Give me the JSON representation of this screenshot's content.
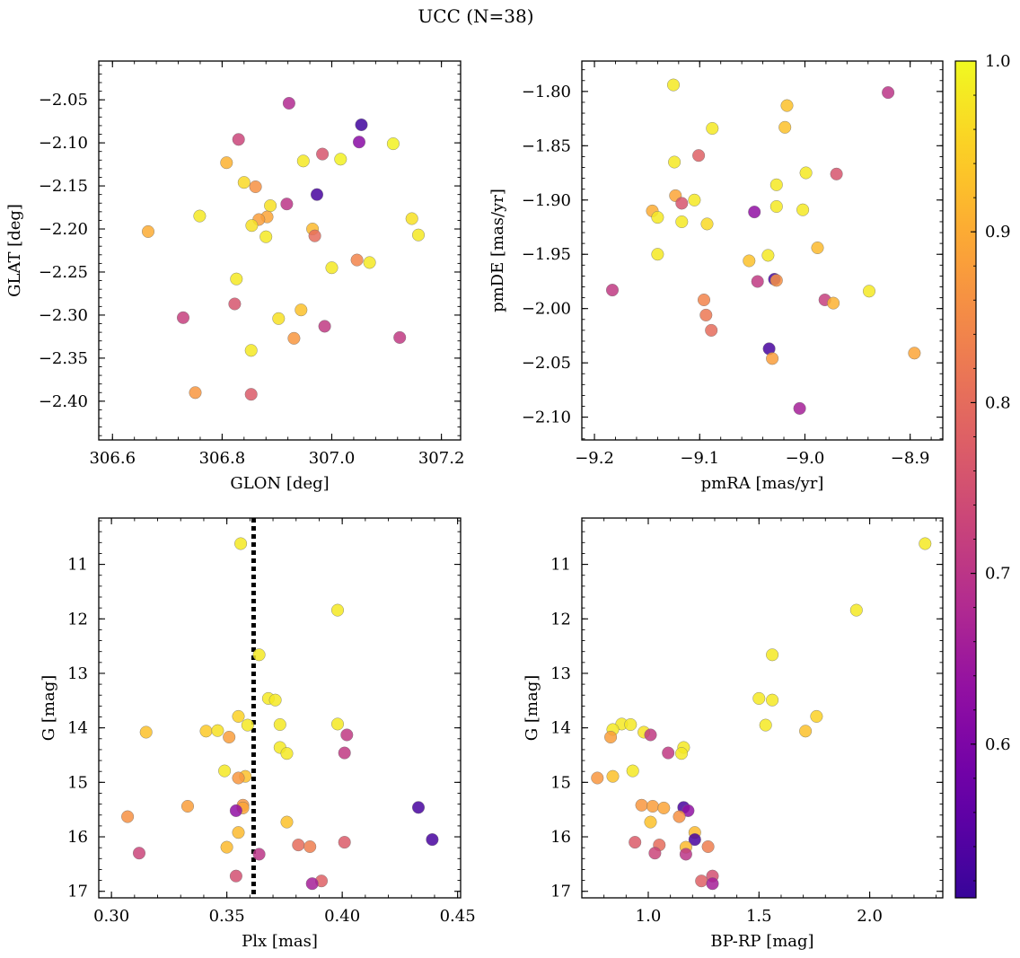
{
  "figure_title": "UCC (N=38)",
  "colors": {
    "axes": "#000000",
    "marker_edge": "#6e6e6e",
    "membership_line": "#000000"
  },
  "colorbar": {
    "cmap": "plasma",
    "range": [
      0.51,
      1.0
    ],
    "ticks": [
      0.6,
      0.7,
      0.8,
      0.9,
      1.0
    ],
    "tick_labels": [
      "0.6",
      "0.7",
      "0.8",
      "0.9",
      "1.0"
    ]
  },
  "chart_data": [
    {
      "type": "scatter",
      "panel": "top-left",
      "xlabel": "GLON [deg]",
      "ylabel": "GLAT [deg]",
      "xlim": [
        306.575,
        307.235
      ],
      "ylim": [
        -2.445,
        -2.005
      ],
      "y_inverted": false,
      "xticks": [
        306.6,
        306.8,
        307.0,
        307.2
      ],
      "xtick_labels": [
        "306.6",
        "306.8",
        "307.0",
        "307.2"
      ],
      "yticks": [
        -2.05,
        -2.1,
        -2.15,
        -2.2,
        -2.25,
        -2.3,
        -2.35,
        -2.4
      ],
      "ytick_labels": [
        "−2.05",
        "−2.10",
        "−2.15",
        "−2.20",
        "−2.25",
        "−2.30",
        "−2.35",
        "−2.40"
      ],
      "points": [
        {
          "x": 306.922,
          "y": -2.054,
          "c": 0.68
        },
        {
          "x": 307.054,
          "y": -2.079,
          "c": 0.52
        },
        {
          "x": 306.83,
          "y": -2.096,
          "c": 0.73
        },
        {
          "x": 307.05,
          "y": -2.099,
          "c": 0.62
        },
        {
          "x": 307.112,
          "y": -2.101,
          "c": 0.99
        },
        {
          "x": 306.983,
          "y": -2.113,
          "c": 0.76
        },
        {
          "x": 307.016,
          "y": -2.119,
          "c": 0.99
        },
        {
          "x": 306.948,
          "y": -2.121,
          "c": 0.98
        },
        {
          "x": 306.808,
          "y": -2.123,
          "c": 0.91
        },
        {
          "x": 306.84,
          "y": -2.146,
          "c": 0.96
        },
        {
          "x": 306.861,
          "y": -2.151,
          "c": 0.86
        },
        {
          "x": 306.973,
          "y": -2.16,
          "c": 0.53
        },
        {
          "x": 306.918,
          "y": -2.171,
          "c": 0.7
        },
        {
          "x": 306.888,
          "y": -2.173,
          "c": 0.97
        },
        {
          "x": 306.882,
          "y": -2.186,
          "c": 0.89
        },
        {
          "x": 306.867,
          "y": -2.189,
          "c": 0.88
        },
        {
          "x": 306.759,
          "y": -2.185,
          "c": 0.98
        },
        {
          "x": 307.146,
          "y": -2.188,
          "c": 0.97
        },
        {
          "x": 306.854,
          "y": -2.196,
          "c": 0.97
        },
        {
          "x": 306.965,
          "y": -2.2,
          "c": 0.92
        },
        {
          "x": 306.665,
          "y": -2.203,
          "c": 0.9
        },
        {
          "x": 307.158,
          "y": -2.207,
          "c": 0.98
        },
        {
          "x": 306.88,
          "y": -2.209,
          "c": 0.98
        },
        {
          "x": 306.969,
          "y": -2.208,
          "c": 0.8
        },
        {
          "x": 307.046,
          "y": -2.236,
          "c": 0.84
        },
        {
          "x": 307.069,
          "y": -2.239,
          "c": 0.98
        },
        {
          "x": 307.0,
          "y": -2.245,
          "c": 0.98
        },
        {
          "x": 306.826,
          "y": -2.258,
          "c": 0.98
        },
        {
          "x": 306.823,
          "y": -2.287,
          "c": 0.76
        },
        {
          "x": 306.944,
          "y": -2.294,
          "c": 0.93
        },
        {
          "x": 306.729,
          "y": -2.303,
          "c": 0.72
        },
        {
          "x": 306.903,
          "y": -2.304,
          "c": 0.97
        },
        {
          "x": 306.987,
          "y": -2.313,
          "c": 0.71
        },
        {
          "x": 306.931,
          "y": -2.327,
          "c": 0.87
        },
        {
          "x": 307.124,
          "y": -2.326,
          "c": 0.71
        },
        {
          "x": 306.853,
          "y": -2.341,
          "c": 0.98
        },
        {
          "x": 306.751,
          "y": -2.39,
          "c": 0.87
        },
        {
          "x": 306.853,
          "y": -2.392,
          "c": 0.77
        }
      ]
    },
    {
      "type": "scatter",
      "panel": "top-right",
      "xlabel": "pmRA [mas/yr]",
      "ylabel": "pmDE [mas/yr]",
      "xlim": [
        -9.212,
        -8.869
      ],
      "ylim": [
        -2.121,
        -1.772
      ],
      "y_inverted": false,
      "xticks": [
        -9.2,
        -9.1,
        -9.0,
        -8.9
      ],
      "xtick_labels": [
        "−9.2",
        "−9.1",
        "−9.0",
        "−8.9"
      ],
      "yticks": [
        -1.8,
        -1.85,
        -1.9,
        -1.95,
        -2.0,
        -2.05,
        -2.1
      ],
      "ytick_labels": [
        "−1.80",
        "−1.85",
        "−1.90",
        "−1.95",
        "−2.00",
        "−2.05",
        "−2.10"
      ],
      "points": [
        {
          "x": -9.125,
          "y": -1.794,
          "c": 0.98
        },
        {
          "x": -8.921,
          "y": -1.801,
          "c": 0.7
        },
        {
          "x": -9.017,
          "y": -1.813,
          "c": 0.93
        },
        {
          "x": -9.019,
          "y": -1.833,
          "c": 0.93
        },
        {
          "x": -9.088,
          "y": -1.834,
          "c": 0.98
        },
        {
          "x": -9.101,
          "y": -1.859,
          "c": 0.78
        },
        {
          "x": -9.124,
          "y": -1.865,
          "c": 0.98
        },
        {
          "x": -8.999,
          "y": -1.875,
          "c": 0.98
        },
        {
          "x": -8.97,
          "y": -1.876,
          "c": 0.76
        },
        {
          "x": -9.027,
          "y": -1.886,
          "c": 0.98
        },
        {
          "x": -9.123,
          "y": -1.896,
          "c": 0.89
        },
        {
          "x": -9.105,
          "y": -1.9,
          "c": 0.98
        },
        {
          "x": -9.117,
          "y": -1.903,
          "c": 0.76
        },
        {
          "x": -9.027,
          "y": -1.906,
          "c": 0.98
        },
        {
          "x": -9.002,
          "y": -1.909,
          "c": 0.98
        },
        {
          "x": -9.145,
          "y": -1.91,
          "c": 0.9
        },
        {
          "x": -9.048,
          "y": -1.911,
          "c": 0.63
        },
        {
          "x": -9.14,
          "y": -1.916,
          "c": 0.98
        },
        {
          "x": -9.117,
          "y": -1.92,
          "c": 0.98
        },
        {
          "x": -9.093,
          "y": -1.922,
          "c": 0.96
        },
        {
          "x": -8.988,
          "y": -1.944,
          "c": 0.92
        },
        {
          "x": -9.14,
          "y": -1.95,
          "c": 0.98
        },
        {
          "x": -9.035,
          "y": -1.951,
          "c": 0.98
        },
        {
          "x": -9.053,
          "y": -1.956,
          "c": 0.93
        },
        {
          "x": -9.029,
          "y": -1.973,
          "c": 0.53
        },
        {
          "x": -9.027,
          "y": -1.974,
          "c": 0.86
        },
        {
          "x": -9.045,
          "y": -1.975,
          "c": 0.71
        },
        {
          "x": -9.183,
          "y": -1.983,
          "c": 0.71
        },
        {
          "x": -8.939,
          "y": -1.984,
          "c": 0.98
        },
        {
          "x": -9.096,
          "y": -1.992,
          "c": 0.84
        },
        {
          "x": -8.981,
          "y": -1.992,
          "c": 0.72
        },
        {
          "x": -8.973,
          "y": -1.995,
          "c": 0.91
        },
        {
          "x": -9.094,
          "y": -2.006,
          "c": 0.82
        },
        {
          "x": -9.089,
          "y": -2.02,
          "c": 0.8
        },
        {
          "x": -9.034,
          "y": -2.037,
          "c": 0.53
        },
        {
          "x": -8.896,
          "y": -2.041,
          "c": 0.89
        },
        {
          "x": -9.031,
          "y": -2.046,
          "c": 0.88
        },
        {
          "x": -9.005,
          "y": -2.092,
          "c": 0.66
        }
      ]
    },
    {
      "type": "scatter",
      "panel": "bottom-left",
      "xlabel": "Plx [mas]",
      "ylabel": "G [mag]",
      "xlim": [
        0.2945,
        0.4513
      ],
      "ylim": [
        17.12,
        10.15
      ],
      "y_inverted": true,
      "xticks": [
        0.3,
        0.35,
        0.4,
        0.45
      ],
      "xtick_labels": [
        "0.30",
        "0.35",
        "0.40",
        "0.45"
      ],
      "yticks": [
        11,
        12,
        13,
        14,
        15,
        16,
        17
      ],
      "ytick_labels": [
        "11",
        "12",
        "13",
        "14",
        "15",
        "16",
        "17"
      ],
      "vertical_line_x": 0.3616,
      "points": [
        {
          "x": 0.356,
          "y": 10.62,
          "c": 0.98
        },
        {
          "x": 0.398,
          "y": 11.84,
          "c": 0.98
        },
        {
          "x": 0.364,
          "y": 12.66,
          "c": 0.98
        },
        {
          "x": 0.368,
          "y": 13.46,
          "c": 0.98
        },
        {
          "x": 0.371,
          "y": 13.49,
          "c": 0.98
        },
        {
          "x": 0.355,
          "y": 13.79,
          "c": 0.95
        },
        {
          "x": 0.398,
          "y": 13.93,
          "c": 0.98
        },
        {
          "x": 0.373,
          "y": 13.94,
          "c": 0.98
        },
        {
          "x": 0.359,
          "y": 13.95,
          "c": 0.98
        },
        {
          "x": 0.341,
          "y": 14.06,
          "c": 0.94
        },
        {
          "x": 0.346,
          "y": 14.05,
          "c": 0.97
        },
        {
          "x": 0.315,
          "y": 14.08,
          "c": 0.93
        },
        {
          "x": 0.402,
          "y": 14.13,
          "c": 0.71
        },
        {
          "x": 0.351,
          "y": 14.17,
          "c": 0.88
        },
        {
          "x": 0.373,
          "y": 14.36,
          "c": 0.98
        },
        {
          "x": 0.376,
          "y": 14.47,
          "c": 0.98
        },
        {
          "x": 0.401,
          "y": 14.46,
          "c": 0.71
        },
        {
          "x": 0.349,
          "y": 14.79,
          "c": 0.98
        },
        {
          "x": 0.358,
          "y": 14.89,
          "c": 0.93
        },
        {
          "x": 0.355,
          "y": 14.92,
          "c": 0.87
        },
        {
          "x": 0.357,
          "y": 15.42,
          "c": 0.87
        },
        {
          "x": 0.333,
          "y": 15.44,
          "c": 0.88
        },
        {
          "x": 0.357,
          "y": 15.47,
          "c": 0.89
        },
        {
          "x": 0.433,
          "y": 15.46,
          "c": 0.53
        },
        {
          "x": 0.354,
          "y": 15.52,
          "c": 0.63
        },
        {
          "x": 0.307,
          "y": 15.63,
          "c": 0.86
        },
        {
          "x": 0.376,
          "y": 15.73,
          "c": 0.93
        },
        {
          "x": 0.355,
          "y": 15.92,
          "c": 0.92
        },
        {
          "x": 0.439,
          "y": 16.05,
          "c": 0.53
        },
        {
          "x": 0.401,
          "y": 16.1,
          "c": 0.77
        },
        {
          "x": 0.381,
          "y": 16.15,
          "c": 0.8
        },
        {
          "x": 0.386,
          "y": 16.18,
          "c": 0.83
        },
        {
          "x": 0.35,
          "y": 16.19,
          "c": 0.92
        },
        {
          "x": 0.312,
          "y": 16.3,
          "c": 0.73
        },
        {
          "x": 0.364,
          "y": 16.32,
          "c": 0.7
        },
        {
          "x": 0.354,
          "y": 16.72,
          "c": 0.75
        },
        {
          "x": 0.391,
          "y": 16.81,
          "c": 0.78
        },
        {
          "x": 0.387,
          "y": 16.86,
          "c": 0.66
        }
      ]
    },
    {
      "type": "scatter",
      "panel": "bottom-right",
      "xlabel": "BP-RP [mag]",
      "ylabel": "G [mag]",
      "xlim": [
        0.7,
        2.33
      ],
      "ylim": [
        17.12,
        10.15
      ],
      "y_inverted": true,
      "xticks": [
        1.0,
        1.5,
        2.0
      ],
      "xtick_labels": [
        "1.0",
        "1.5",
        "2.0"
      ],
      "yticks": [
        11,
        12,
        13,
        14,
        15,
        16,
        17
      ],
      "ytick_labels": [
        "11",
        "12",
        "13",
        "14",
        "15",
        "16",
        "17"
      ],
      "points": [
        {
          "x": 2.25,
          "y": 10.62,
          "c": 0.98
        },
        {
          "x": 1.94,
          "y": 11.84,
          "c": 0.98
        },
        {
          "x": 1.56,
          "y": 12.66,
          "c": 0.98
        },
        {
          "x": 1.5,
          "y": 13.46,
          "c": 0.98
        },
        {
          "x": 1.56,
          "y": 13.49,
          "c": 0.98
        },
        {
          "x": 1.76,
          "y": 13.79,
          "c": 0.95
        },
        {
          "x": 0.88,
          "y": 13.93,
          "c": 0.98
        },
        {
          "x": 0.92,
          "y": 13.94,
          "c": 0.98
        },
        {
          "x": 1.53,
          "y": 13.95,
          "c": 0.98
        },
        {
          "x": 0.84,
          "y": 14.03,
          "c": 0.98
        },
        {
          "x": 1.71,
          "y": 14.06,
          "c": 0.93
        },
        {
          "x": 0.98,
          "y": 14.08,
          "c": 0.97
        },
        {
          "x": 1.01,
          "y": 14.13,
          "c": 0.71
        },
        {
          "x": 0.83,
          "y": 14.17,
          "c": 0.88
        },
        {
          "x": 1.16,
          "y": 14.36,
          "c": 0.98
        },
        {
          "x": 1.15,
          "y": 14.47,
          "c": 0.98
        },
        {
          "x": 1.09,
          "y": 14.46,
          "c": 0.71
        },
        {
          "x": 0.93,
          "y": 14.79,
          "c": 0.98
        },
        {
          "x": 0.84,
          "y": 14.89,
          "c": 0.93
        },
        {
          "x": 0.77,
          "y": 14.92,
          "c": 0.87
        },
        {
          "x": 0.97,
          "y": 15.42,
          "c": 0.87
        },
        {
          "x": 1.02,
          "y": 15.44,
          "c": 0.88
        },
        {
          "x": 1.07,
          "y": 15.47,
          "c": 0.89
        },
        {
          "x": 1.16,
          "y": 15.46,
          "c": 0.53
        },
        {
          "x": 1.18,
          "y": 15.52,
          "c": 0.63
        },
        {
          "x": 1.14,
          "y": 15.63,
          "c": 0.86
        },
        {
          "x": 1.01,
          "y": 15.73,
          "c": 0.93
        },
        {
          "x": 1.21,
          "y": 15.92,
          "c": 0.92
        },
        {
          "x": 1.21,
          "y": 16.05,
          "c": 0.53
        },
        {
          "x": 0.94,
          "y": 16.1,
          "c": 0.77
        },
        {
          "x": 1.05,
          "y": 16.15,
          "c": 0.8
        },
        {
          "x": 1.27,
          "y": 16.18,
          "c": 0.83
        },
        {
          "x": 1.17,
          "y": 16.19,
          "c": 0.92
        },
        {
          "x": 1.03,
          "y": 16.3,
          "c": 0.73
        },
        {
          "x": 1.17,
          "y": 16.32,
          "c": 0.7
        },
        {
          "x": 1.29,
          "y": 16.72,
          "c": 0.75
        },
        {
          "x": 1.24,
          "y": 16.81,
          "c": 0.78
        },
        {
          "x": 1.29,
          "y": 16.86,
          "c": 0.66
        }
      ]
    }
  ]
}
